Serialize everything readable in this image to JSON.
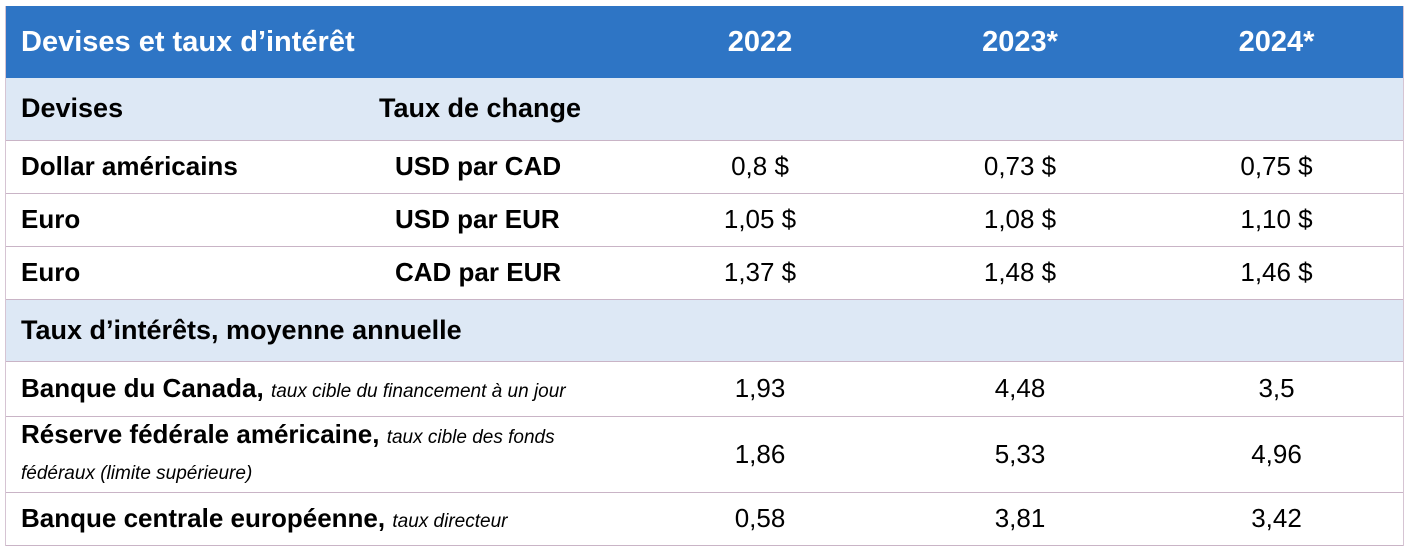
{
  "header": {
    "title": "Devises et taux d’intérêt",
    "years": [
      "2022",
      "2023*",
      "2024*"
    ]
  },
  "section_devises": {
    "label": "Devises",
    "sub_label": "Taux de change"
  },
  "currency_rows": [
    {
      "name": "Dollar américains",
      "unit": "USD par CAD",
      "values": [
        "0,8 $",
        "0,73 $",
        "0,75 $"
      ]
    },
    {
      "name": "Euro",
      "unit": "USD par EUR",
      "values": [
        "1,05 $",
        "1,08 $",
        "1,10 $"
      ]
    },
    {
      "name": "Euro",
      "unit": "CAD par EUR",
      "values": [
        "1,37 $",
        "1,48 $",
        "1,46 $"
      ]
    }
  ],
  "section_taux": {
    "label": "Taux d’intérêts, moyenne annuelle"
  },
  "rate_rows": [
    {
      "name": "Banque du Canada,",
      "note": "taux cible du financement à un jour",
      "values": [
        "1,93",
        "4,48",
        "3,5"
      ]
    },
    {
      "name": "Réserve fédérale américaine,",
      "note": "taux cible des fonds fédéraux (limite supérieure)",
      "values": [
        "1,86",
        "5,33",
        "4,96"
      ]
    },
    {
      "name": "Banque centrale européenne,",
      "note": "taux directeur",
      "values": [
        "0,58",
        "3,81",
        "3,42"
      ]
    }
  ],
  "colors": {
    "header_bg": "#2e75c5",
    "section_bg": "#dde8f5",
    "row_border": "#c9b4c6"
  }
}
